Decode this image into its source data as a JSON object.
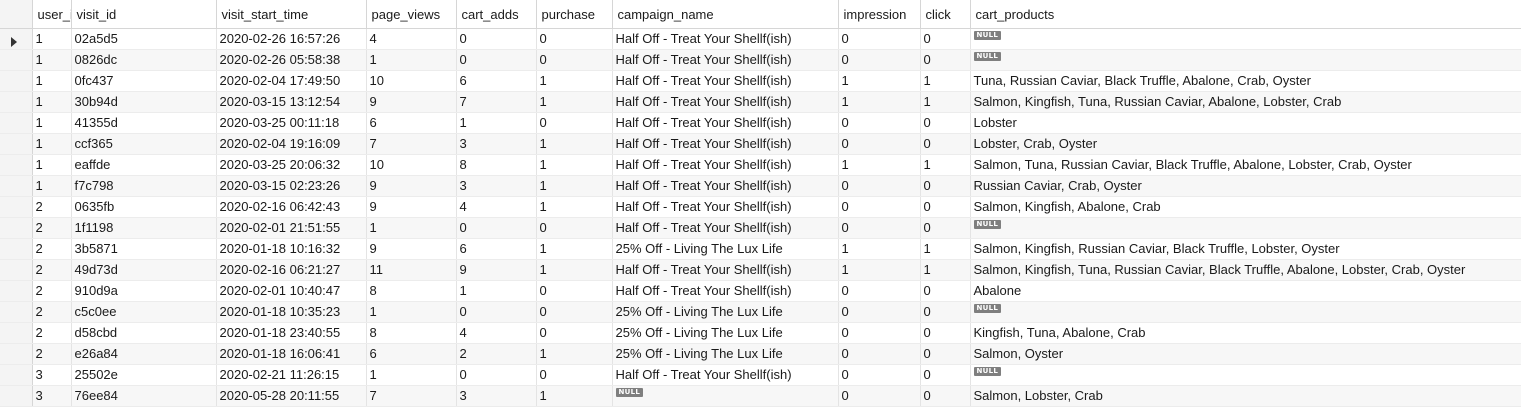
{
  "columns": [
    "user_id",
    "visit_id",
    "visit_start_time",
    "page_views",
    "cart_adds",
    "purchase",
    "campaign_name",
    "impression",
    "click",
    "cart_products"
  ],
  "null_label": "NULL",
  "selected_row": 0,
  "rows": [
    [
      "1",
      "02a5d5",
      "2020-02-26 16:57:26",
      "4",
      "0",
      "0",
      "Half Off - Treat Your Shellf(ish)",
      "0",
      "0",
      null
    ],
    [
      "1",
      "0826dc",
      "2020-02-26 05:58:38",
      "1",
      "0",
      "0",
      "Half Off - Treat Your Shellf(ish)",
      "0",
      "0",
      null
    ],
    [
      "1",
      "0fc437",
      "2020-02-04 17:49:50",
      "10",
      "6",
      "1",
      "Half Off - Treat Your Shellf(ish)",
      "1",
      "1",
      "Tuna, Russian Caviar, Black Truffle, Abalone, Crab, Oyster"
    ],
    [
      "1",
      "30b94d",
      "2020-03-15 13:12:54",
      "9",
      "7",
      "1",
      "Half Off - Treat Your Shellf(ish)",
      "1",
      "1",
      "Salmon, Kingfish, Tuna, Russian Caviar, Abalone, Lobster, Crab"
    ],
    [
      "1",
      "41355d",
      "2020-03-25 00:11:18",
      "6",
      "1",
      "0",
      "Half Off - Treat Your Shellf(ish)",
      "0",
      "0",
      "Lobster"
    ],
    [
      "1",
      "ccf365",
      "2020-02-04 19:16:09",
      "7",
      "3",
      "1",
      "Half Off - Treat Your Shellf(ish)",
      "0",
      "0",
      "Lobster, Crab, Oyster"
    ],
    [
      "1",
      "eaffde",
      "2020-03-25 20:06:32",
      "10",
      "8",
      "1",
      "Half Off - Treat Your Shellf(ish)",
      "1",
      "1",
      "Salmon, Tuna, Russian Caviar, Black Truffle, Abalone, Lobster, Crab, Oyster"
    ],
    [
      "1",
      "f7c798",
      "2020-03-15 02:23:26",
      "9",
      "3",
      "1",
      "Half Off - Treat Your Shellf(ish)",
      "0",
      "0",
      "Russian Caviar, Crab, Oyster"
    ],
    [
      "2",
      "0635fb",
      "2020-02-16 06:42:43",
      "9",
      "4",
      "1",
      "Half Off - Treat Your Shellf(ish)",
      "0",
      "0",
      "Salmon, Kingfish, Abalone, Crab"
    ],
    [
      "2",
      "1f1198",
      "2020-02-01 21:51:55",
      "1",
      "0",
      "0",
      "Half Off - Treat Your Shellf(ish)",
      "0",
      "0",
      null
    ],
    [
      "2",
      "3b5871",
      "2020-01-18 10:16:32",
      "9",
      "6",
      "1",
      "25% Off - Living The Lux Life",
      "1",
      "1",
      "Salmon, Kingfish, Russian Caviar, Black Truffle, Lobster, Oyster"
    ],
    [
      "2",
      "49d73d",
      "2020-02-16 06:21:27",
      "11",
      "9",
      "1",
      "Half Off - Treat Your Shellf(ish)",
      "1",
      "1",
      "Salmon, Kingfish, Tuna, Russian Caviar, Black Truffle, Abalone, Lobster, Crab, Oyster"
    ],
    [
      "2",
      "910d9a",
      "2020-02-01 10:40:47",
      "8",
      "1",
      "0",
      "Half Off - Treat Your Shellf(ish)",
      "0",
      "0",
      "Abalone"
    ],
    [
      "2",
      "c5c0ee",
      "2020-01-18 10:35:23",
      "1",
      "0",
      "0",
      "25% Off - Living The Lux Life",
      "0",
      "0",
      null
    ],
    [
      "2",
      "d58cbd",
      "2020-01-18 23:40:55",
      "8",
      "4",
      "0",
      "25% Off - Living The Lux Life",
      "0",
      "0",
      "Kingfish, Tuna, Abalone, Crab"
    ],
    [
      "2",
      "e26a84",
      "2020-01-18 16:06:41",
      "6",
      "2",
      "1",
      "25% Off - Living The Lux Life",
      "0",
      "0",
      "Salmon, Oyster"
    ],
    [
      "3",
      "25502e",
      "2020-02-21 11:26:15",
      "1",
      "0",
      "0",
      "Half Off - Treat Your Shellf(ish)",
      "0",
      "0",
      null
    ],
    [
      "3",
      "76ee84",
      "2020-05-28 20:11:55",
      "7",
      "3",
      "1",
      null,
      "0",
      "0",
      "Salmon, Lobster, Crab"
    ]
  ]
}
